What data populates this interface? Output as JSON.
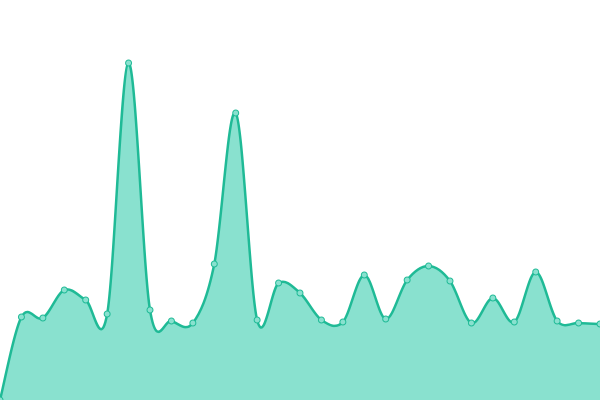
{
  "chart_data": {
    "type": "area",
    "values": [
      0,
      83,
      82,
      110,
      100,
      86,
      337,
      90,
      79,
      77,
      136,
      287,
      80,
      117,
      107,
      80,
      78,
      125,
      81,
      120,
      134,
      119,
      77,
      102,
      78,
      128,
      79,
      77,
      76
    ],
    "color": "#1fba96",
    "fill": "#89e1cf",
    "ylim": [
      0,
      400
    ]
  }
}
